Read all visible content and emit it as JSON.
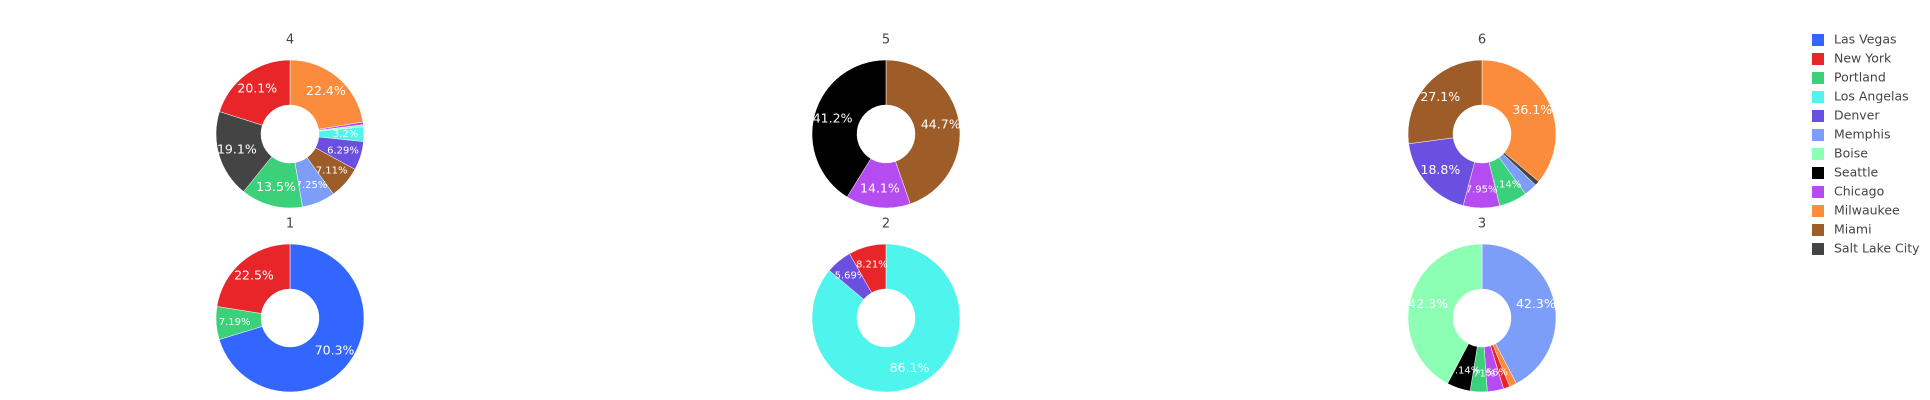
{
  "legend": {
    "names": [
      "Las Vegas",
      "New York",
      "Portland",
      "Los Angelas",
      "Denver",
      "Memphis",
      "Boise",
      "Seattle",
      "Chicago",
      "Milwaukee",
      "Miami",
      "Salt Lake City"
    ],
    "colors": [
      "#3366ff",
      "#e8262a",
      "#3ad17a",
      "#4ff5ec",
      "#6a4fe0",
      "#7c9ef8",
      "#8cffb5",
      "#000000",
      "#b44cf2",
      "#fb8c3b",
      "#9e5c29",
      "#444444"
    ]
  },
  "chart_data": [
    {
      "type": "pie",
      "title": "4",
      "categories": [
        "Milwaukee",
        "Chicago",
        "Boise",
        "Los Angelas",
        "Denver",
        "Miami",
        "Memphis",
        "Portland",
        "Salt Lake City",
        "New York"
      ],
      "values": [
        22.4,
        0.6,
        0.45,
        3.2,
        6.29,
        7.11,
        7.25,
        13.5,
        19.1,
        20.1
      ],
      "value_labels": [
        "22.4%",
        null,
        null,
        "3.2%",
        "6.29%",
        "7.11%",
        "7.25%",
        "13.5%",
        "19.1%",
        "20.1%"
      ]
    },
    {
      "type": "pie",
      "title": "5",
      "categories": [
        "Miami",
        "Chicago",
        "Seattle"
      ],
      "values": [
        44.7,
        14.1,
        41.2
      ],
      "value_labels": [
        "44.7%",
        "14.1%",
        "41.2%"
      ]
    },
    {
      "type": "pie",
      "title": "6",
      "categories": [
        "Milwaukee",
        "Salt Lake City",
        "Memphis",
        "Portland",
        "Chicago",
        "Denver",
        "Miami"
      ],
      "values": [
        36.1,
        1.0,
        2.9,
        6.14,
        7.95,
        18.8,
        27.1
      ],
      "value_labels": [
        "36.1%",
        null,
        null,
        "6.14%",
        "7.95%",
        "18.8%",
        "27.1%"
      ]
    },
    {
      "type": "pie",
      "title": "1",
      "categories": [
        "Las Vegas",
        "Portland",
        "New York"
      ],
      "values": [
        70.3,
        7.19,
        22.5
      ],
      "value_labels": [
        "70.3%",
        "7.19%",
        "22.5%"
      ]
    },
    {
      "type": "pie",
      "title": "2",
      "categories": [
        "Los Angelas",
        "Denver",
        "New York"
      ],
      "values": [
        86.1,
        5.69,
        8.21
      ],
      "value_labels": [
        "86.1%",
        "5.69%",
        "8.21%"
      ]
    },
    {
      "type": "pie",
      "title": "3",
      "categories": [
        "Memphis",
        "Milwaukee",
        "New York",
        "Chicago",
        "Portland",
        "Seattle",
        "Boise"
      ],
      "values": [
        42.3,
        1.6,
        1.4,
        3.56,
        3.71,
        5.14,
        42.3
      ],
      "value_labels": [
        "42.3%",
        null,
        null,
        "3.56%",
        "3.71%",
        "5.14%",
        "42.3%"
      ]
    }
  ]
}
